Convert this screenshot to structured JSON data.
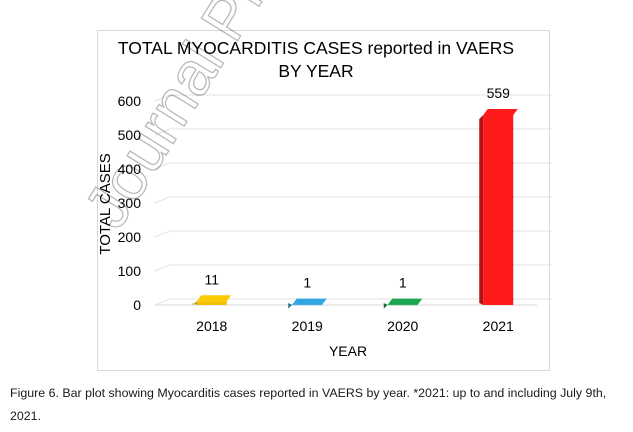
{
  "watermark": "Journal Pre",
  "caption": "Figure 6. Bar plot showing Myocarditis cases reported in VAERS by year. *2021: up to and including July 9th, 2021.",
  "chart_data": {
    "type": "bar",
    "title_lines": [
      "TOTAL MYOCARDITIS CASES reported in VAERS",
      "BY YEAR"
    ],
    "xlabel": "YEAR",
    "ylabel": "TOTAL CASES",
    "categories": [
      "2018",
      "2019",
      "2020",
      "2021"
    ],
    "values": [
      11,
      1,
      1,
      559
    ],
    "data_labels": [
      "11",
      "1",
      "1",
      "559"
    ],
    "colors": [
      "#f2c000",
      "#2e9fd8",
      "#1a9e4b",
      "#ff1a1a"
    ],
    "yticks": [
      "0",
      "100",
      "200",
      "300",
      "400",
      "500",
      "600"
    ],
    "ylim": [
      0,
      600
    ],
    "grid": true,
    "legend": "none"
  }
}
